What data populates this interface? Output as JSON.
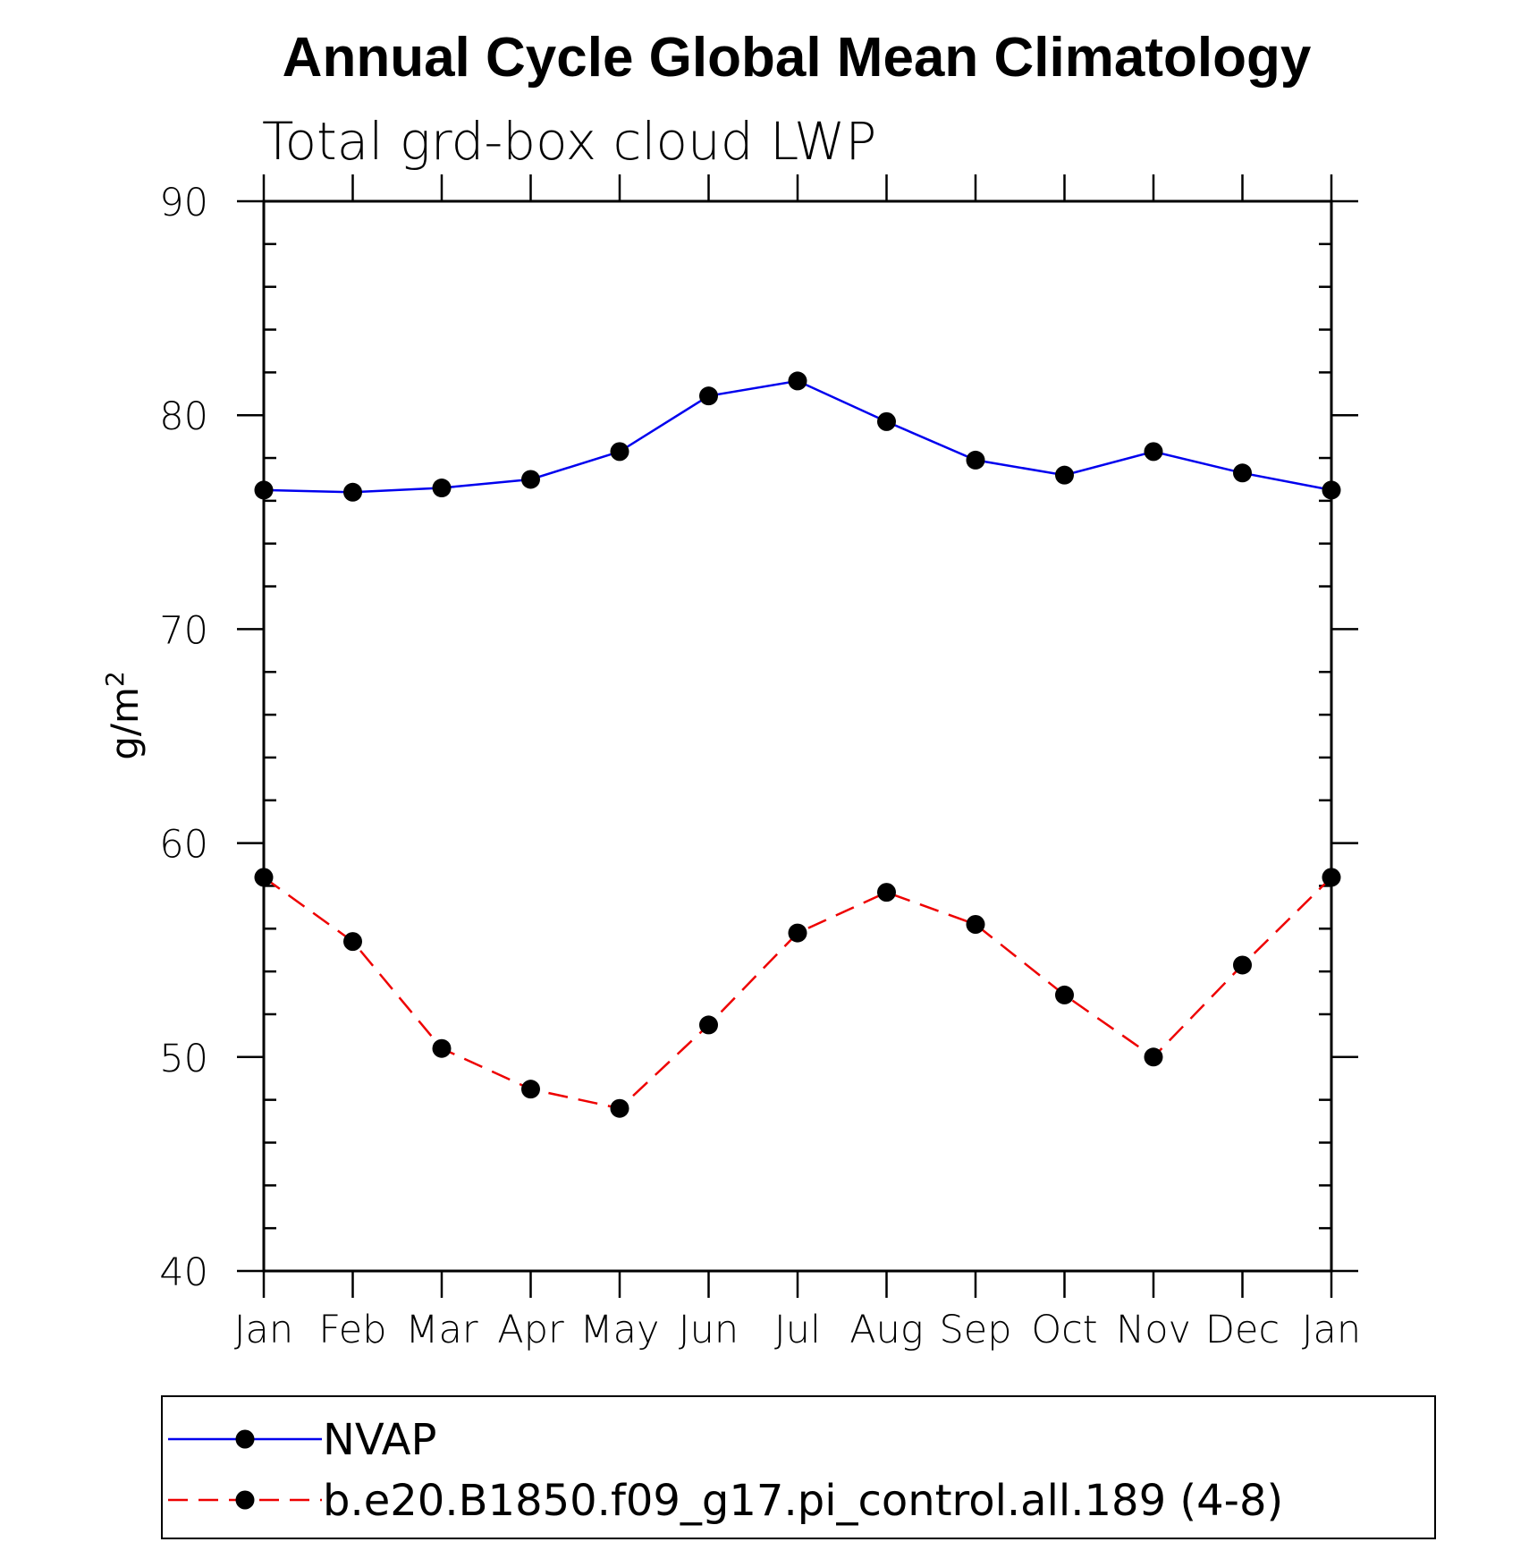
{
  "chart_data": {
    "type": "line",
    "title": "Annual Cycle Global Mean Climatology",
    "subtitle": "Total grd-box cloud LWP",
    "ylabel": "g/m",
    "ylabel_superscript": "2",
    "xlabel": "",
    "categories": [
      "Jan",
      "Feb",
      "Mar",
      "Apr",
      "May",
      "Jun",
      "Jul",
      "Aug",
      "Sep",
      "Oct",
      "Nov",
      "Dec",
      "Jan"
    ],
    "ylim": [
      40,
      90
    ],
    "yticks": [
      40,
      50,
      60,
      70,
      80,
      90
    ],
    "grid": false,
    "legend_position": "bottom",
    "series": [
      {
        "name": "NVAP",
        "color": "#0000ee",
        "dash": "solid",
        "marker": "circle",
        "values": [
          76.5,
          76.4,
          76.6,
          77.0,
          78.3,
          80.9,
          81.6,
          79.7,
          77.9,
          77.2,
          78.3,
          77.3,
          76.5
        ]
      },
      {
        "name": "b.e20.B1850.f09_g17.pi_control.all.189 (4-8)",
        "color": "#ee0000",
        "dash": "dashed",
        "marker": "circle",
        "values": [
          58.4,
          55.4,
          50.4,
          48.5,
          47.6,
          51.5,
          55.8,
          57.7,
          56.2,
          52.9,
          50.0,
          54.3,
          58.4
        ]
      }
    ]
  }
}
